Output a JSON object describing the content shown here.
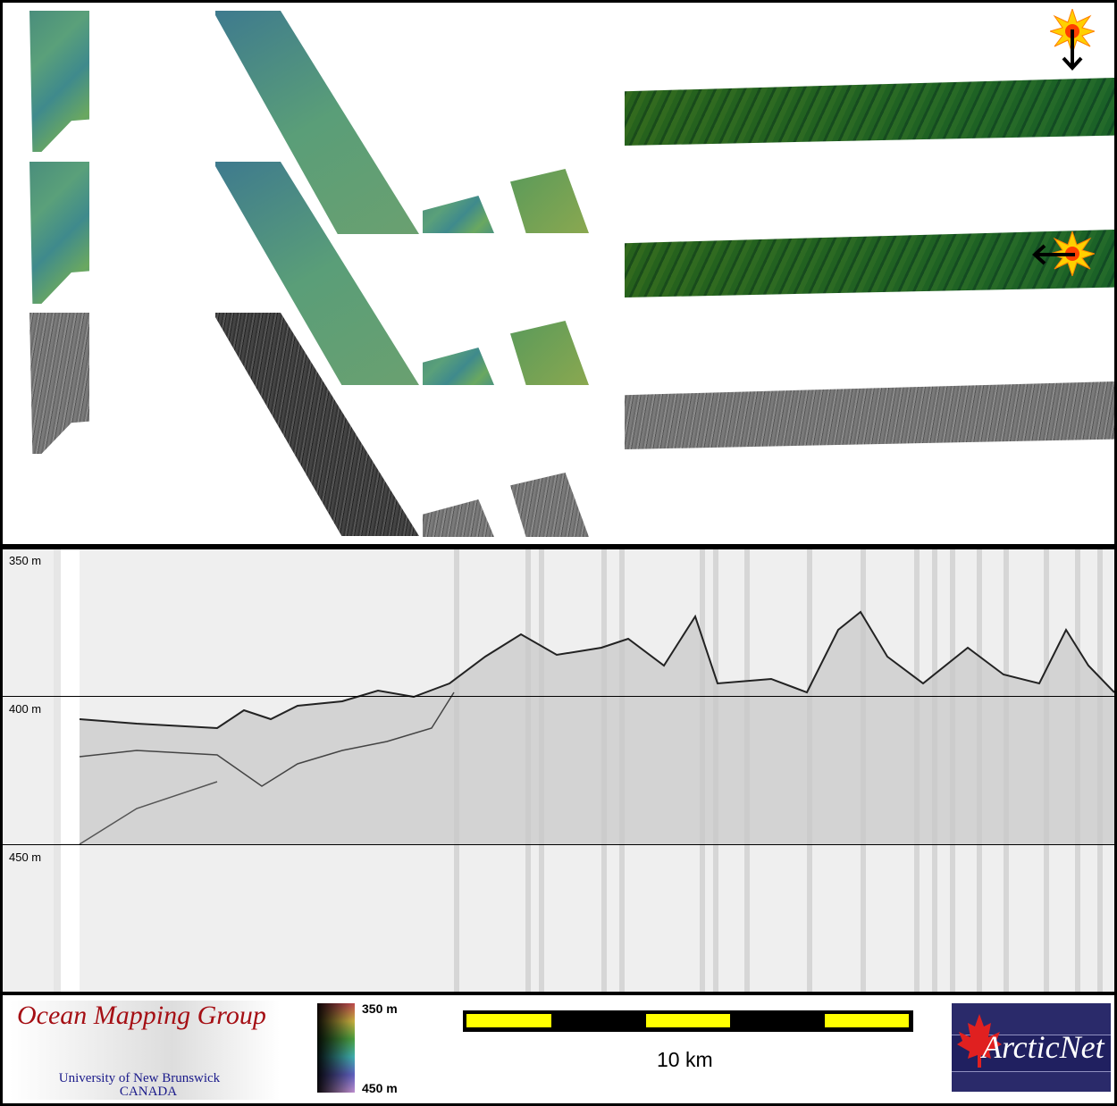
{
  "depth_axis": {
    "labels": [
      "350 m",
      "400 m",
      "450 m"
    ]
  },
  "colorbar": {
    "top_label": "350 m",
    "bottom_label": "450 m"
  },
  "scale_bar": {
    "label": "10 km",
    "colors": {
      "bar": "#000000",
      "segments": "#ffff00"
    }
  },
  "logos": {
    "ocean_mapping": {
      "title": "Ocean Mapping Group",
      "line1": "University of New Brunswick",
      "line2": "CANADA"
    },
    "arcticnet": {
      "text": "ArcticNet"
    }
  },
  "icons": {
    "sun_marker": "sun-illumination-icon",
    "arrow_down": "arrow-down-icon",
    "arrow_left": "arrow-left-icon"
  }
}
